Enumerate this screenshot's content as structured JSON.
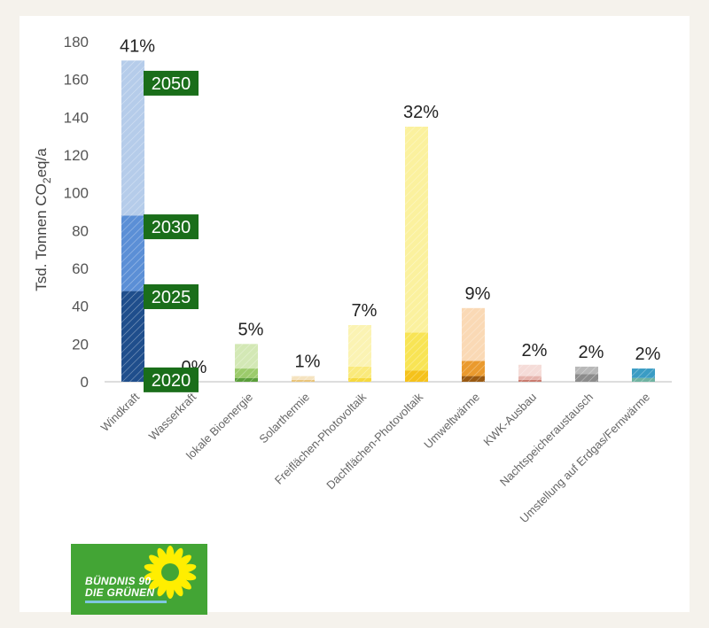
{
  "chart_data": {
    "type": "bar",
    "stacked": true,
    "ylabel_main": "Tsd. Tonnen CO",
    "ylabel_sub": "2",
    "ylabel_tail": "eq/a",
    "ylim": [
      0,
      180
    ],
    "yticks": [
      0,
      20,
      40,
      60,
      80,
      100,
      120,
      140,
      160,
      180
    ],
    "grid": false,
    "categories": [
      "Windkraft",
      "Wasserkraft",
      "lokale Bioenergie",
      "Solarthermie",
      "Freiflächen-Photovoltaik",
      "Dachflächen-Photovoltaik",
      "Umweltwärme",
      "KWK-Ausbau",
      "Nachtspeicheraustausch",
      "Umstellung auf Erdgas/Fernwärme"
    ],
    "percent_labels": [
      "41%",
      "0%",
      "5%",
      "1%",
      "7%",
      "32%",
      "9%",
      "2%",
      "2%",
      "2%"
    ],
    "year_labels": [
      "2050",
      "2030",
      "2025",
      "2020"
    ],
    "segments": [
      [
        {
          "year": "2025",
          "value": 48,
          "color": "#1f4e8c"
        },
        {
          "year": "2030",
          "value": 40,
          "color": "#5b8fd6"
        },
        {
          "year": "2050",
          "value": 82,
          "color": "#b5ccea"
        }
      ],
      [],
      [
        {
          "year": "2020",
          "value": 2,
          "color": "#5a9e3a"
        },
        {
          "year": "2025",
          "value": 5,
          "color": "#9ccb6b"
        },
        {
          "year": "2050",
          "value": 13,
          "color": "#d3e8b5"
        }
      ],
      [
        {
          "year": "2020",
          "value": 1,
          "color": "#e9c47a"
        },
        {
          "year": "2050",
          "value": 2,
          "color": "#f5e3c0"
        }
      ],
      [
        {
          "year": "2020",
          "value": 2,
          "color": "#f6d93e"
        },
        {
          "year": "2025",
          "value": 6,
          "color": "#faea7c"
        },
        {
          "year": "2050",
          "value": 22,
          "color": "#fbf3b3"
        }
      ],
      [
        {
          "year": "2020",
          "value": 6,
          "color": "#f5c21b"
        },
        {
          "year": "2030",
          "value": 20,
          "color": "#f8e455"
        },
        {
          "year": "2050",
          "value": 109,
          "color": "#fbf19e"
        }
      ],
      [
        {
          "year": "2020",
          "value": 3,
          "color": "#9a5a12"
        },
        {
          "year": "2025",
          "value": 8,
          "color": "#ea9a2e"
        },
        {
          "year": "2050",
          "value": 28,
          "color": "#fad9b5"
        }
      ],
      [
        {
          "year": "2020",
          "value": 1,
          "color": "#c97b6f"
        },
        {
          "year": "2025",
          "value": 2,
          "color": "#e6b4ad"
        },
        {
          "year": "2050",
          "value": 6,
          "color": "#f5dcd8"
        }
      ],
      [
        {
          "year": "2020",
          "value": 4,
          "color": "#8c8c8c"
        },
        {
          "year": "2050",
          "value": 4,
          "color": "#b8b8b8"
        }
      ],
      [
        {
          "year": "2020",
          "value": 2,
          "color": "#6fb3a2"
        },
        {
          "year": "2050",
          "value": 5,
          "color": "#3a9cc4"
        }
      ]
    ]
  },
  "logo": {
    "line1": "BÜNDNIS 90",
    "line2": "DIE GRÜNEN"
  },
  "colors": {
    "year_label_bg": "#1a6e1a",
    "logo_bg": "#43a535",
    "sunflower": "#ffee00"
  }
}
